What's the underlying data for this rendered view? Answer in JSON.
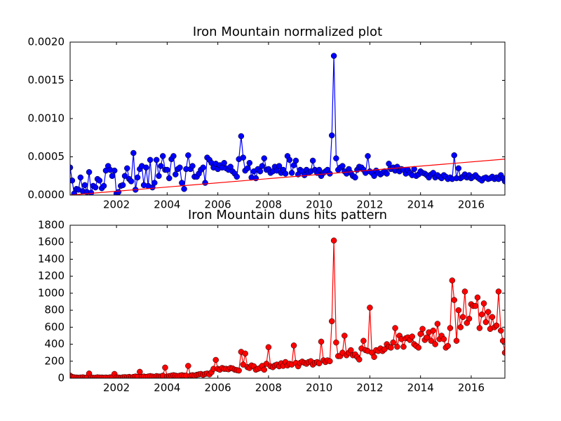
{
  "chart_data": [
    {
      "type": "line",
      "title": "Iron Mountain normalized plot",
      "xlim": [
        2000.17,
        2017.33
      ],
      "xticks": [
        2002,
        2004,
        2006,
        2008,
        2010,
        2012,
        2014,
        2016
      ],
      "ylim": [
        0,
        0.002
      ],
      "yticks": [
        {
          "value": 0,
          "label": "0.0000"
        },
        {
          "value": 0.0005,
          "label": "0.0005"
        },
        {
          "value": 0.001,
          "label": "0.0010"
        },
        {
          "value": 0.0015,
          "label": "0.0015"
        },
        {
          "value": 0.002,
          "label": "0.0020"
        }
      ],
      "series": [
        {
          "color": "#0000ff",
          "x": [
            2000.17,
            2000.25,
            2000.33,
            2000.42,
            2000.5,
            2000.58,
            2000.67,
            2000.75,
            2000.83,
            2000.92,
            2001.0,
            2001.08,
            2001.17,
            2001.25,
            2001.33,
            2001.42,
            2001.5,
            2001.58,
            2001.67,
            2001.75,
            2001.83,
            2001.92,
            2002.0,
            2002.08,
            2002.17,
            2002.25,
            2002.33,
            2002.42,
            2002.5,
            2002.58,
            2002.67,
            2002.75,
            2002.83,
            2002.92,
            2003.0,
            2003.08,
            2003.17,
            2003.25,
            2003.33,
            2003.42,
            2003.5,
            2003.58,
            2003.67,
            2003.75,
            2003.83,
            2003.92,
            2004.0,
            2004.08,
            2004.17,
            2004.25,
            2004.33,
            2004.42,
            2004.5,
            2004.58,
            2004.67,
            2004.75,
            2004.83,
            2004.92,
            2005.0,
            2005.08,
            2005.17,
            2005.25,
            2005.33,
            2005.42,
            2005.5,
            2005.58,
            2005.67,
            2005.75,
            2005.83,
            2005.92,
            2006.0,
            2006.08,
            2006.17,
            2006.25,
            2006.33,
            2006.42,
            2006.5,
            2006.58,
            2006.67,
            2006.75,
            2006.83,
            2006.92,
            2007.0,
            2007.08,
            2007.17,
            2007.25,
            2007.33,
            2007.42,
            2007.5,
            2007.58,
            2007.67,
            2007.75,
            2007.83,
            2007.92,
            2008.0,
            2008.08,
            2008.17,
            2008.25,
            2008.33,
            2008.42,
            2008.5,
            2008.58,
            2008.67,
            2008.75,
            2008.83,
            2008.92,
            2009.0,
            2009.08,
            2009.17,
            2009.25,
            2009.33,
            2009.42,
            2009.5,
            2009.58,
            2009.67,
            2009.75,
            2009.83,
            2009.92,
            2010.0,
            2010.08,
            2010.17,
            2010.25,
            2010.33,
            2010.42,
            2010.5,
            2010.58,
            2010.67,
            2010.75,
            2010.83,
            2010.92,
            2011.0,
            2011.08,
            2011.17,
            2011.25,
            2011.33,
            2011.42,
            2011.5,
            2011.58,
            2011.67,
            2011.75,
            2011.83,
            2011.92,
            2012.0,
            2012.08,
            2012.17,
            2012.25,
            2012.33,
            2012.42,
            2012.5,
            2012.58,
            2012.67,
            2012.75,
            2012.83,
            2012.92,
            2013.0,
            2013.08,
            2013.17,
            2013.25,
            2013.33,
            2013.42,
            2013.5,
            2013.58,
            2013.67,
            2013.75,
            2013.83,
            2013.92,
            2014.0,
            2014.08,
            2014.17,
            2014.25,
            2014.33,
            2014.42,
            2014.5,
            2014.58,
            2014.67,
            2014.75,
            2014.83,
            2014.92,
            2015.0,
            2015.08,
            2015.17,
            2015.25,
            2015.33,
            2015.42,
            2015.5,
            2015.58,
            2015.67,
            2015.75,
            2015.83,
            2015.92,
            2016.0,
            2016.08,
            2016.17,
            2016.25,
            2016.33,
            2016.42,
            2016.5,
            2016.58,
            2016.67,
            2016.75,
            2016.83,
            2016.92,
            2017.0,
            2017.08,
            2017.17,
            2017.25,
            2017.33
          ],
          "values": [
            0.00036,
            0.00019,
            2e-05,
            8e-05,
            7e-05,
            0.00023,
            5e-05,
            0.00013,
            4e-05,
            0.0003,
            3e-05,
            0.00012,
            0.0001,
            0.00021,
            0.00019,
            9e-05,
            0.00012,
            0.00032,
            0.00038,
            0.00033,
            0.00025,
            0.00032,
            2e-05,
            4e-05,
            0.00012,
            0.00013,
            0.00025,
            0.00035,
            0.00021,
            0.00018,
            0.00055,
            7e-05,
            0.00023,
            0.00034,
            0.00038,
            0.00013,
            0.00036,
            0.00012,
            0.00046,
            0.0001,
            0.00016,
            0.00046,
            0.00025,
            0.00038,
            0.00051,
            0.00033,
            0.00033,
            0.00022,
            0.00047,
            0.00051,
            0.00027,
            0.00034,
            0.00036,
            0.00016,
            8e-05,
            0.00034,
            0.00052,
            0.00034,
            0.00038,
            0.00024,
            0.00024,
            0.00028,
            0.00033,
            0.00036,
            0.00016,
            0.00049,
            0.00046,
            0.00042,
            0.00036,
            0.00041,
            0.00034,
            0.00039,
            0.00036,
            0.00042,
            0.00035,
            0.00033,
            0.00037,
            0.00031,
            0.00028,
            0.00024,
            0.00047,
            0.00077,
            0.00049,
            0.00032,
            0.00035,
            0.00042,
            0.00023,
            0.00031,
            0.00022,
            0.00034,
            0.00031,
            0.00038,
            0.00048,
            0.00033,
            0.00034,
            0.00029,
            0.00031,
            0.00037,
            0.00032,
            0.00038,
            0.00029,
            0.00033,
            0.00028,
            0.00051,
            0.00046,
            0.00029,
            0.00039,
            0.00045,
            0.00027,
            0.00033,
            0.00031,
            0.00026,
            0.00033,
            0.00029,
            0.00031,
            0.00045,
            0.00033,
            0.00029,
            0.00033,
            0.00025,
            0.00029,
            0.00031,
            0.00033,
            0.00028,
            0.00078,
            0.00182,
            0.00048,
            0.00033,
            0.00036,
            0.00038,
            0.00031,
            0.00028,
            0.00034,
            0.00029,
            0.00025,
            0.00023,
            0.00033,
            0.00037,
            0.00036,
            0.00033,
            0.00029,
            0.00051,
            0.00031,
            0.00029,
            0.00025,
            0.00032,
            0.00029,
            0.00027,
            0.00029,
            0.00031,
            0.00028,
            0.00041,
            0.00034,
            0.00036,
            0.00032,
            0.00037,
            0.00031,
            0.00034,
            0.00033,
            0.00028,
            0.00033,
            0.00029,
            0.00026,
            0.00034,
            0.00025,
            0.00027,
            0.00031,
            0.00029,
            0.00028,
            0.00026,
            0.00023,
            0.00027,
            0.00029,
            0.00023,
            0.00026,
            0.00024,
            0.00022,
            0.00026,
            0.00024,
            0.00021,
            0.00023,
            0.00021,
            0.00052,
            0.00022,
            0.00035,
            0.00022,
            0.00024,
            0.00027,
            0.00023,
            0.00026,
            0.00022,
            0.00024,
            0.00026,
            0.00023,
            0.00021,
            0.00019,
            0.00022,
            0.00023,
            0.00021,
            0.00022,
            0.00024,
            0.00021,
            0.00023,
            0.00021,
            0.00026,
            0.00022,
            0.00018
          ]
        },
        {
          "color": "#ff0000",
          "marker": false,
          "x": [
            2000.17,
            2017.33
          ],
          "values": [
            0,
            0.00047
          ]
        }
      ]
    },
    {
      "type": "line",
      "title": "Iron Mountain duns hits pattern",
      "xlim": [
        2000.17,
        2017.33
      ],
      "xticks": [
        2002,
        2004,
        2006,
        2008,
        2010,
        2012,
        2014,
        2016
      ],
      "ylim": [
        0,
        1800
      ],
      "yticks": [
        0,
        200,
        400,
        600,
        800,
        1000,
        1200,
        1400,
        1600,
        1800
      ],
      "series": [
        {
          "color": "#ff0000",
          "x": [
            2000.17,
            2000.25,
            2000.33,
            2000.42,
            2000.5,
            2000.58,
            2000.67,
            2000.75,
            2000.83,
            2000.92,
            2001.0,
            2001.08,
            2001.17,
            2001.25,
            2001.33,
            2001.42,
            2001.5,
            2001.58,
            2001.67,
            2001.75,
            2001.83,
            2001.92,
            2002.0,
            2002.08,
            2002.17,
            2002.25,
            2002.33,
            2002.42,
            2002.5,
            2002.58,
            2002.67,
            2002.75,
            2002.83,
            2002.92,
            2003.0,
            2003.08,
            2003.17,
            2003.25,
            2003.33,
            2003.42,
            2003.5,
            2003.58,
            2003.67,
            2003.75,
            2003.83,
            2003.92,
            2004.0,
            2004.08,
            2004.17,
            2004.25,
            2004.33,
            2004.42,
            2004.5,
            2004.58,
            2004.67,
            2004.75,
            2004.83,
            2004.92,
            2005.0,
            2005.08,
            2005.17,
            2005.25,
            2005.33,
            2005.42,
            2005.5,
            2005.58,
            2005.67,
            2005.75,
            2005.83,
            2005.92,
            2006.0,
            2006.08,
            2006.17,
            2006.25,
            2006.33,
            2006.42,
            2006.5,
            2006.58,
            2006.67,
            2006.75,
            2006.83,
            2006.92,
            2007.0,
            2007.08,
            2007.17,
            2007.25,
            2007.33,
            2007.42,
            2007.5,
            2007.58,
            2007.67,
            2007.75,
            2007.83,
            2007.92,
            2008.0,
            2008.08,
            2008.17,
            2008.25,
            2008.33,
            2008.42,
            2008.5,
            2008.58,
            2008.67,
            2008.75,
            2008.83,
            2008.92,
            2009.0,
            2009.08,
            2009.17,
            2009.25,
            2009.33,
            2009.42,
            2009.5,
            2009.58,
            2009.67,
            2009.75,
            2009.83,
            2009.92,
            2010.0,
            2010.08,
            2010.17,
            2010.25,
            2010.33,
            2010.42,
            2010.5,
            2010.58,
            2010.67,
            2010.75,
            2010.83,
            2010.92,
            2011.0,
            2011.08,
            2011.17,
            2011.25,
            2011.33,
            2011.42,
            2011.5,
            2011.58,
            2011.67,
            2011.75,
            2011.83,
            2011.92,
            2012.0,
            2012.08,
            2012.17,
            2012.25,
            2012.33,
            2012.42,
            2012.5,
            2012.58,
            2012.67,
            2012.75,
            2012.83,
            2012.92,
            2013.0,
            2013.08,
            2013.17,
            2013.25,
            2013.33,
            2013.42,
            2013.5,
            2013.58,
            2013.67,
            2013.75,
            2013.83,
            2013.92,
            2014.0,
            2014.08,
            2014.17,
            2014.25,
            2014.33,
            2014.42,
            2014.5,
            2014.58,
            2014.67,
            2014.75,
            2014.83,
            2014.92,
            2015.0,
            2015.08,
            2015.17,
            2015.25,
            2015.33,
            2015.42,
            2015.5,
            2015.58,
            2015.67,
            2015.75,
            2015.83,
            2015.92,
            2016.0,
            2016.08,
            2016.17,
            2016.25,
            2016.33,
            2016.42,
            2016.5,
            2016.58,
            2016.67,
            2016.75,
            2016.83,
            2016.92,
            2017.0,
            2017.08,
            2017.17,
            2017.25,
            2017.33
          ],
          "values": [
            30,
            15,
            10,
            8,
            5,
            8,
            10,
            5,
            8,
            55,
            8,
            5,
            5,
            10,
            8,
            8,
            5,
            8,
            5,
            10,
            10,
            50,
            10,
            8,
            5,
            10,
            12,
            10,
            15,
            8,
            15,
            20,
            15,
            75,
            15,
            20,
            15,
            20,
            25,
            20,
            15,
            25,
            20,
            20,
            30,
            125,
            20,
            25,
            30,
            35,
            30,
            25,
            30,
            35,
            30,
            30,
            145,
            30,
            35,
            30,
            40,
            45,
            50,
            40,
            50,
            55,
            45,
            70,
            110,
            215,
            110,
            100,
            120,
            110,
            110,
            105,
            120,
            115,
            100,
            95,
            90,
            310,
            160,
            290,
            130,
            120,
            150,
            140,
            100,
            110,
            120,
            145,
            100,
            170,
            365,
            140,
            130,
            150,
            160,
            140,
            175,
            145,
            190,
            150,
            170,
            160,
            385,
            180,
            140,
            180,
            195,
            180,
            170,
            190,
            200,
            160,
            180,
            190,
            175,
            430,
            210,
            190,
            210,
            200,
            670,
            1620,
            420,
            260,
            260,
            300,
            500,
            270,
            300,
            330,
            270,
            280,
            250,
            220,
            350,
            440,
            330,
            320,
            830,
            300,
            250,
            330,
            320,
            350,
            320,
            340,
            400,
            370,
            360,
            420,
            590,
            370,
            500,
            460,
            370,
            470,
            480,
            450,
            490,
            400,
            380,
            360,
            520,
            580,
            450,
            480,
            540,
            440,
            560,
            400,
            640,
            460,
            500,
            460,
            360,
            380,
            590,
            1150,
            920,
            440,
            800,
            600,
            720,
            1020,
            650,
            700,
            870,
            850,
            850,
            950,
            590,
            750,
            880,
            660,
            780,
            580,
            720,
            600,
            620,
            1020,
            560,
            440,
            300
          ]
        }
      ]
    }
  ]
}
